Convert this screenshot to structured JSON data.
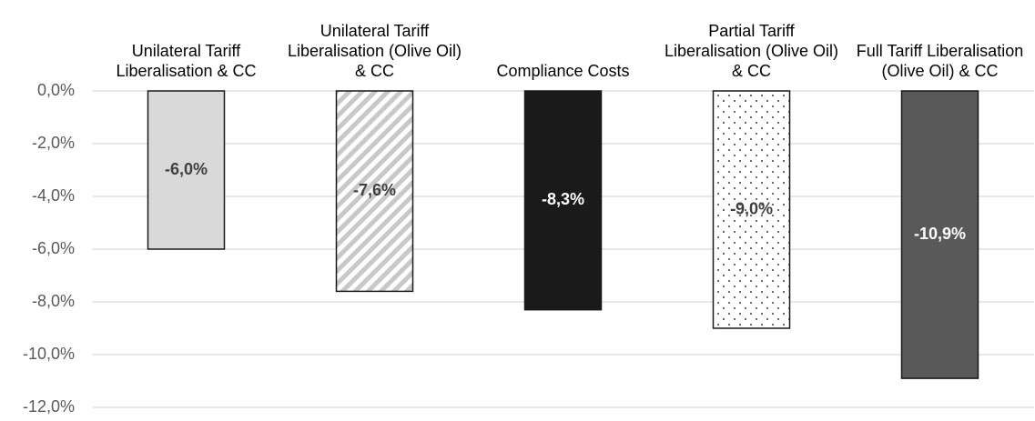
{
  "chart_data": {
    "type": "bar",
    "categories": [
      "Unilateral Tariff Liberalisation & CC",
      "Unilateral Tariff Liberalisation (Olive Oil) & CC",
      "Compliance Costs",
      "Partial Tariff Liberalisation (Olive Oil) & CC",
      "Full Tariff Liberalisation (Olive Oil) & CC"
    ],
    "values": [
      -6.0,
      -7.6,
      -8.3,
      -9.0,
      -10.9
    ],
    "value_labels": [
      "-6,0%",
      "-7,6%",
      "-8,3%",
      "-9,0%",
      "-10,9%"
    ],
    "colors": [
      "#d9d9d9",
      "#c8c8c8",
      "#1a1a1a",
      "#404040",
      "#595959"
    ],
    "patterns": [
      "solid",
      "stripes",
      "solid",
      "dots",
      "solid"
    ],
    "ylim": [
      -12,
      0
    ],
    "yticks": [
      {
        "value": 0,
        "label": "0,0%"
      },
      {
        "value": -2,
        "label": "-2,0%"
      },
      {
        "value": -4,
        "label": "-4,0%"
      },
      {
        "value": -6,
        "label": "-6,0%"
      },
      {
        "value": -8,
        "label": "-8,0%"
      },
      {
        "value": -10,
        "label": "-10,0%"
      },
      {
        "value": -12,
        "label": "-12,0%"
      }
    ],
    "grid": true
  }
}
